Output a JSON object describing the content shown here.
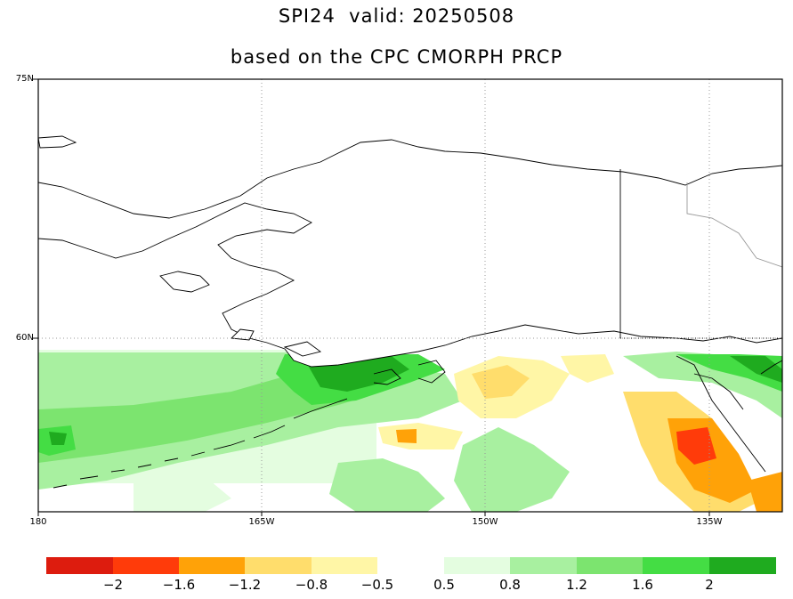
{
  "header": {
    "title": "SPI24  valid: 20250508",
    "subtitle": "based on the CPC CMORPH PRCP"
  },
  "map": {
    "region": "Alaska / Gulf of Alaska",
    "lat_labels": [
      "75N",
      "60N"
    ],
    "lon_labels": [
      "180",
      "165W",
      "150W",
      "135W"
    ],
    "land_color": "#ffffff",
    "coastline_color": "#000000",
    "border_color": "#000000",
    "province_line_color": "#999999",
    "gridline_style": "dotted gray"
  },
  "colorbar": {
    "negative": {
      "colors": [
        "#dd1c0e",
        "#ff3b0a",
        "#ffa208",
        "#ffdd6c",
        "#fff6a6"
      ],
      "labels": [
        "−2",
        "−1.6",
        "−1.2",
        "−0.8",
        "−0.5"
      ]
    },
    "positive": {
      "colors": [
        "#e4fde0",
        "#a8f0a0",
        "#7ce46f",
        "#44dd44",
        "#1fab1f"
      ],
      "labels": [
        "0.5",
        "0.8",
        "1.2",
        "1.6",
        "2"
      ]
    }
  }
}
